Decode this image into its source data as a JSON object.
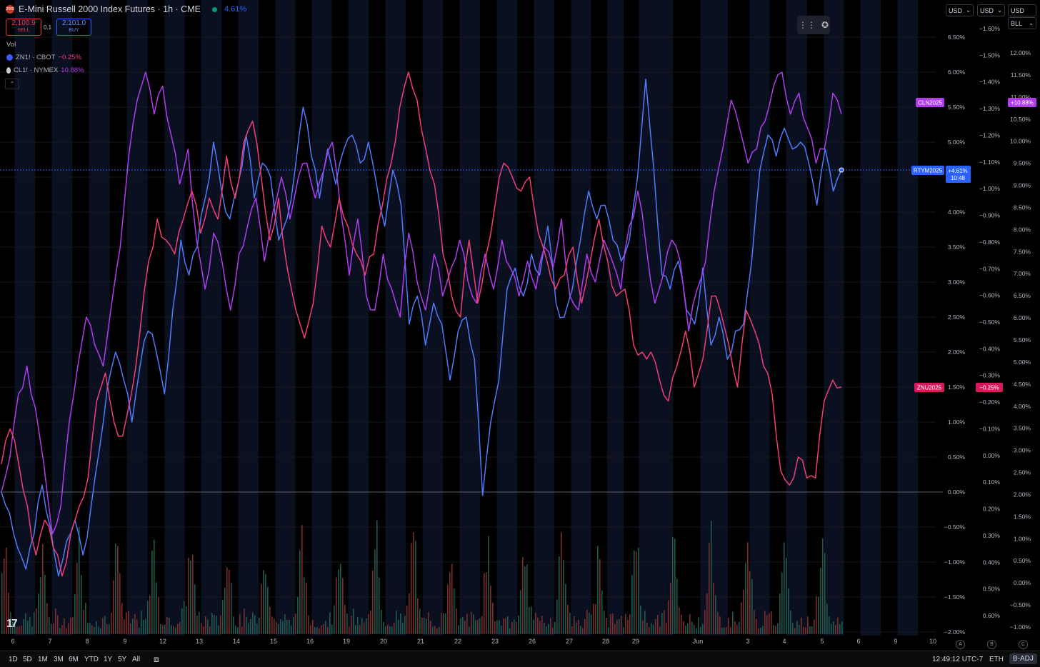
{
  "header": {
    "title": "E-Mini Russell 2000 Index Futures · 1h · CME",
    "symbol_icon": "2000",
    "change_pct": "4.61%"
  },
  "trade": {
    "sell_price": "2,100.9",
    "sell_label": "SELL",
    "spread": "0.1",
    "buy_price": "2,101.0",
    "buy_label": "BUY"
  },
  "legend": {
    "vol": "Vol",
    "items": [
      {
        "name": "ZN1! · CBOT",
        "value": "−0.25%",
        "color": "#f23c78"
      },
      {
        "name": "CL1! · NYMEX",
        "value": "10.88%",
        "color": "#b03cf0"
      }
    ]
  },
  "top_right": {
    "box1": "USD",
    "box2": "USD",
    "box3": "USD",
    "box3b": "BLL"
  },
  "chart_data": {
    "type": "line",
    "x_ticks": [
      "6",
      "7",
      "8",
      "9",
      "12",
      "13",
      "14",
      "15",
      "16",
      "19",
      "20",
      "21",
      "22",
      "23",
      "26",
      "27",
      "28",
      "29",
      "Jun",
      "3",
      "4",
      "5",
      "6",
      "9",
      "10"
    ],
    "scale_main": {
      "labels": [
        "6.50%",
        "6.00%",
        "5.50%",
        "5.00%",
        "4.50%",
        "4.00%",
        "3.50%",
        "3.00%",
        "2.50%",
        "2.00%",
        "1.50%",
        "1.00%",
        "0.50%",
        "0.00%",
        "−0.50%",
        "−1.00%",
        "−1.50%",
        "−2.00%"
      ],
      "range": [
        -2.0,
        6.5
      ]
    },
    "scale_zn": {
      "labels": [
        "−1.60%",
        "−1.50%",
        "−1.40%",
        "−1.30%",
        "−1.20%",
        "−1.10%",
        "−1.00%",
        "−0.90%",
        "−0.80%",
        "−0.70%",
        "−0.60%",
        "−0.50%",
        "−0.40%",
        "−0.30%",
        "−0.20%",
        "−0.10%",
        "0.00%",
        "0.10%",
        "0.20%",
        "0.30%",
        "0.40%",
        "0.50%",
        "0.60%"
      ]
    },
    "scale_cl": {
      "labels": [
        "12.00%",
        "11.50%",
        "11.00%",
        "10.50%",
        "10.00%",
        "9.50%",
        "9.00%",
        "8.50%",
        "8.00%",
        "7.50%",
        "7.00%",
        "6.50%",
        "6.00%",
        "5.50%",
        "5.00%",
        "4.50%",
        "4.00%",
        "3.50%",
        "3.00%",
        "2.50%",
        "2.00%",
        "1.50%",
        "1.00%",
        "0.50%",
        "0.00%",
        "−0.50%",
        "−1.00%"
      ]
    },
    "series": [
      {
        "name": "RTYM2025",
        "color": "#4c7bfd",
        "last": "+4.61%",
        "countdown": "10:48",
        "values": [
          0.0,
          -0.3,
          -0.8,
          -1.1,
          -0.6,
          0.1,
          -0.5,
          -1.2,
          -0.7,
          -0.4,
          -0.9,
          -0.2,
          0.6,
          1.5,
          2.0,
          1.6,
          1.0,
          1.8,
          2.3,
          2.0,
          1.4,
          2.6,
          3.6,
          3.1,
          3.5,
          4.2,
          5.0,
          4.3,
          3.9,
          4.4,
          5.1,
          4.2,
          4.7,
          4.5,
          3.6,
          3.9,
          4.6,
          5.5,
          4.8,
          4.2,
          4.9,
          4.4,
          4.9,
          5.1,
          4.7,
          5.0,
          4.4,
          3.8,
          4.6,
          4.1,
          2.4,
          2.8,
          2.1,
          2.7,
          2.4,
          1.6,
          2.3,
          2.5,
          1.9,
          -0.05,
          1.0,
          1.6,
          2.9,
          3.2,
          2.8,
          3.4,
          3.1,
          3.8,
          2.7,
          2.5,
          2.9,
          3.6,
          4.3,
          3.9,
          4.1,
          3.6,
          3.3,
          3.6,
          4.5,
          5.9,
          4.6,
          3.1,
          2.9,
          3.3,
          2.6,
          2.4,
          3.2,
          2.1,
          2.5,
          1.9,
          2.3,
          2.4,
          3.3,
          4.6,
          5.1,
          4.8,
          5.2,
          4.9,
          5.0,
          4.7,
          4.1,
          4.9,
          4.3,
          4.6
        ]
      },
      {
        "name": "CLN2025",
        "color": "#b03cf0",
        "last": "+10.88%",
        "values": [
          0.0,
          0.5,
          1.4,
          1.8,
          1.2,
          0.4,
          -0.6,
          -0.2,
          1.0,
          1.8,
          2.5,
          2.1,
          1.8,
          2.7,
          3.5,
          4.8,
          5.6,
          6.0,
          5.4,
          5.8,
          5.1,
          4.4,
          4.9,
          3.6,
          2.9,
          3.7,
          3.3,
          2.6,
          3.4,
          3.8,
          4.2,
          3.3,
          4.0,
          4.5,
          3.9,
          4.5,
          4.7,
          4.2,
          4.6,
          5.0,
          4.0,
          3.1,
          3.9,
          2.8,
          2.6,
          3.4,
          2.9,
          2.5,
          3.7,
          3.0,
          2.6,
          3.4,
          2.8,
          3.2,
          3.6,
          3.0,
          2.7,
          3.4,
          2.9,
          3.6,
          3.2,
          2.8,
          3.3,
          2.9,
          3.5,
          3.2,
          3.9,
          2.8,
          2.6,
          3.4,
          3.0,
          3.6,
          3.3,
          2.9,
          3.8,
          4.3,
          3.5,
          2.7,
          3.1,
          3.6,
          3.3,
          2.3,
          2.9,
          3.3,
          4.3,
          4.9,
          5.6,
          5.2,
          4.7,
          4.9,
          5.3,
          5.8,
          6.0,
          5.4,
          5.7,
          5.2,
          4.7,
          4.9,
          5.7,
          5.4
        ]
      },
      {
        "name": "ZNU2025",
        "color": "#f23c78",
        "last": "−0.25%",
        "values": [
          0.4,
          0.9,
          0.4,
          -0.2,
          -0.9,
          -0.4,
          -0.8,
          -1.2,
          -0.6,
          -0.2,
          0.2,
          1.3,
          1.7,
          1.0,
          0.8,
          1.4,
          2.3,
          3.3,
          3.9,
          3.6,
          3.4,
          3.9,
          4.3,
          3.7,
          4.2,
          3.9,
          4.8,
          4.2,
          5.0,
          5.3,
          4.5,
          3.6,
          4.2,
          3.2,
          2.6,
          2.2,
          2.7,
          3.8,
          3.5,
          4.2,
          3.8,
          3.4,
          3.1,
          3.4,
          4.1,
          4.7,
          5.5,
          6.0,
          5.6,
          4.9,
          4.4,
          3.4,
          2.8,
          2.5,
          3.6,
          2.7,
          3.4,
          4.1,
          4.7,
          4.5,
          4.3,
          4.5,
          3.7,
          3.3,
          2.9,
          3.1,
          3.5,
          2.7,
          3.3,
          3.9,
          3.3,
          2.8,
          2.9,
          2.1,
          2.0,
          2.0,
          1.6,
          1.3,
          1.8,
          2.3,
          1.5,
          1.9,
          2.8,
          2.6,
          2.1,
          1.5,
          2.6,
          2.3,
          1.8,
          1.4,
          0.3,
          0.1,
          0.5,
          0.2,
          0.2,
          1.3,
          1.6,
          1.5
        ]
      }
    ],
    "zero_line": 0.0,
    "session_shading": true
  },
  "bottom": {
    "ranges": [
      "1D",
      "5D",
      "1M",
      "3M",
      "6M",
      "YTD",
      "1Y",
      "5Y",
      "All"
    ],
    "time": "12:49:12 UTC-7",
    "session": "ETH",
    "adj": "B-ADJ",
    "scale_buttons": [
      "A",
      "B",
      "C"
    ]
  }
}
